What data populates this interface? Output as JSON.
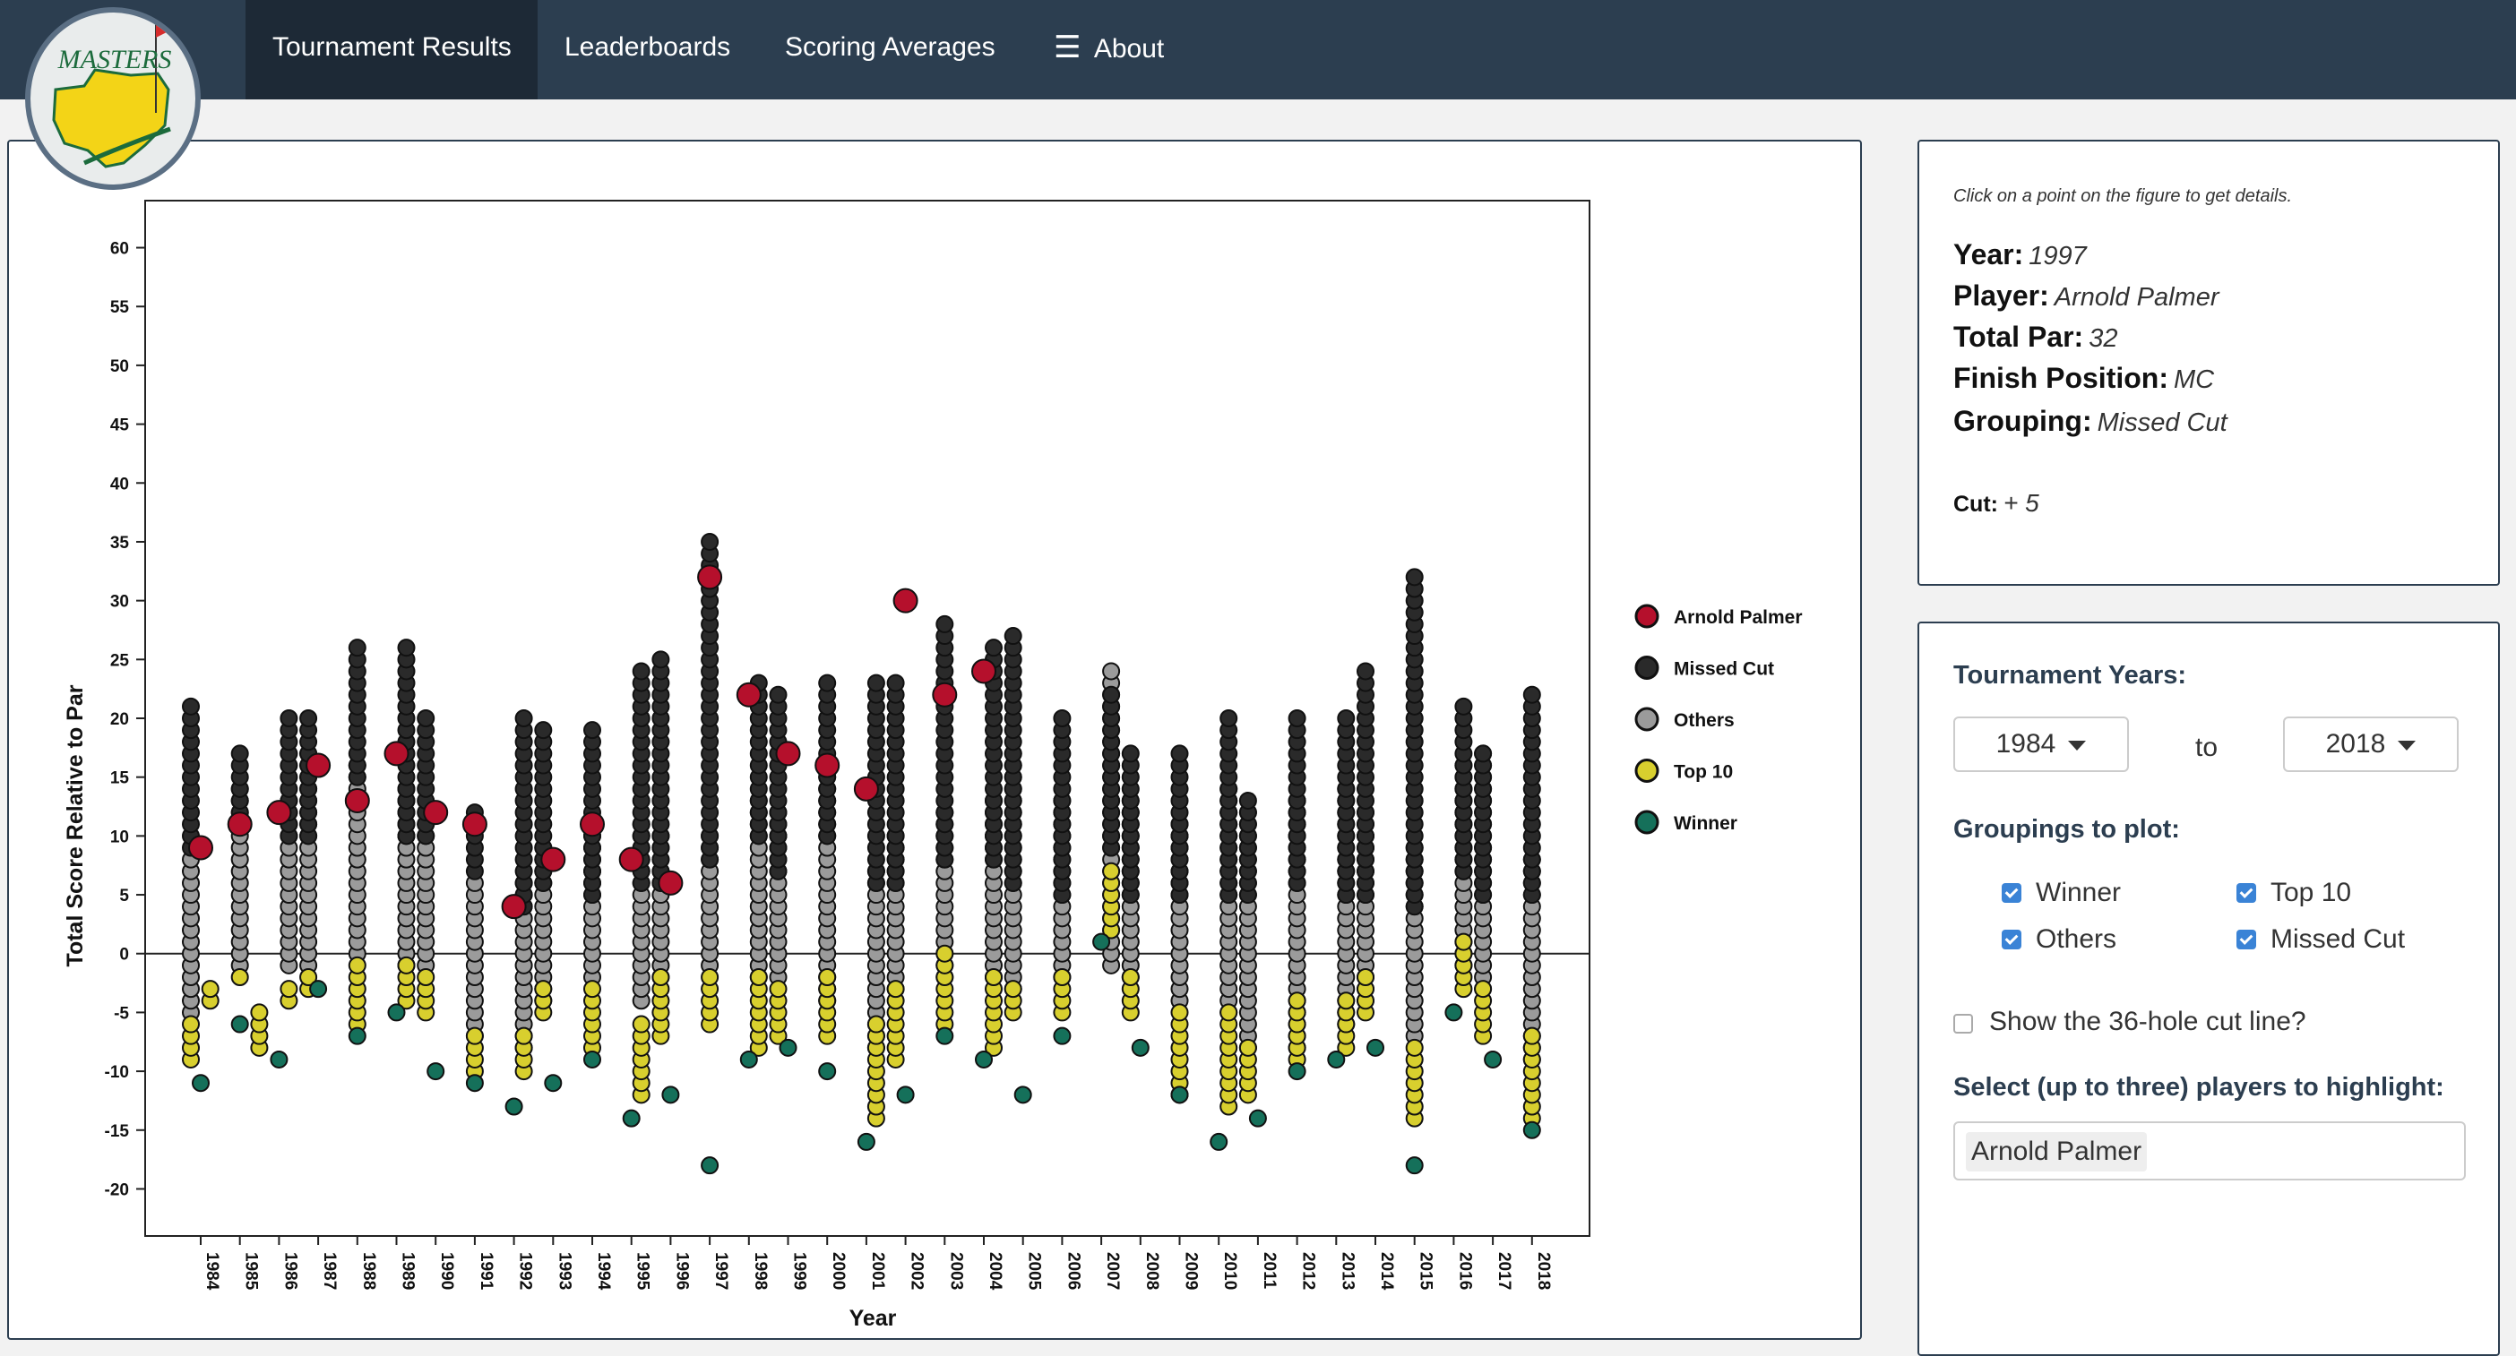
{
  "nav": {
    "items": [
      "Tournament Results",
      "Leaderboards",
      "Scoring Averages",
      "About"
    ],
    "active": "Tournament Results",
    "logo_text": "MASTERS"
  },
  "chart_data": {
    "type": "scatter",
    "xlabel": "Year",
    "ylabel": "Total Score Relative to Par",
    "x_categories": [
      "1984",
      "1985",
      "1986",
      "1987",
      "1988",
      "1989",
      "1990",
      "1991",
      "1992",
      "1993",
      "1994",
      "1995",
      "1996",
      "1997",
      "1998",
      "1999",
      "2000",
      "2001",
      "2002",
      "2003",
      "2004",
      "2005",
      "2006",
      "2007",
      "2008",
      "2009",
      "2010",
      "2011",
      "2012",
      "2013",
      "2014",
      "2015",
      "2016",
      "2017",
      "2018"
    ],
    "yticks": [
      60,
      55,
      50,
      45,
      40,
      35,
      30,
      25,
      20,
      15,
      10,
      5,
      0,
      -5,
      -10,
      -15,
      -20
    ],
    "ylim": [
      -24,
      64
    ],
    "reference_line_y": 0,
    "legend_position": "right",
    "legend": [
      "Arnold Palmer",
      "Missed Cut",
      "Others",
      "Top 10",
      "Winner"
    ],
    "colors": {
      "Arnold Palmer": "#b5102c",
      "Missed Cut": "#2a2a2a",
      "Others": "#9b9b9b",
      "Top 10": "#d8cf2e",
      "Winner": "#15705a"
    },
    "winner": [
      -11,
      -6,
      -9,
      -3,
      -7,
      -5,
      -10,
      -11,
      -13,
      -11,
      -9,
      -14,
      -12,
      -18,
      -9,
      -8,
      -10,
      -16,
      -12,
      -7,
      -9,
      -12,
      -7,
      1,
      -8,
      -12,
      -16,
      -14,
      -10,
      -9,
      -8,
      -18,
      -5,
      -9,
      -15
    ],
    "top10_range": [
      [
        -9,
        -6
      ],
      [
        -4,
        -2
      ],
      [
        -8,
        -3
      ],
      [
        -3,
        -2
      ],
      [
        -6,
        -1
      ],
      [
        -4,
        -1
      ],
      [
        -5,
        -2
      ],
      [
        -10,
        -7
      ],
      [
        -10,
        -7
      ],
      [
        -5,
        -3
      ],
      [
        -8,
        -3
      ],
      [
        -12,
        -6
      ],
      [
        -7,
        -2
      ],
      [
        -6,
        -2
      ],
      [
        -8,
        -2
      ],
      [
        -7,
        -3
      ],
      [
        -7,
        -2
      ],
      [
        -14,
        -6
      ],
      [
        -9,
        -3
      ],
      [
        -6,
        0
      ],
      [
        -8,
        -2
      ],
      [
        -5,
        -3
      ],
      [
        -5,
        -2
      ],
      [
        2,
        7
      ],
      [
        -5,
        -2
      ],
      [
        -12,
        -5
      ],
      [
        -13,
        -5
      ],
      [
        -12,
        -8
      ],
      [
        -9,
        -4
      ],
      [
        -8,
        -4
      ],
      [
        -5,
        -2
      ],
      [
        -14,
        -8
      ],
      [
        -3,
        1
      ],
      [
        -7,
        -3
      ],
      [
        -14,
        -7
      ]
    ],
    "others_range": [
      [
        -5,
        8
      ],
      [
        -1,
        14
      ],
      [
        -1,
        13
      ],
      [
        -1,
        17
      ],
      [
        0,
        16
      ],
      [
        -1,
        14
      ],
      [
        -1,
        11
      ],
      [
        -7,
        6
      ],
      [
        -8,
        6
      ],
      [
        -4,
        9
      ],
      [
        -2,
        10
      ],
      [
        -4,
        11
      ],
      [
        -2,
        10
      ],
      [
        -1,
        10
      ],
      [
        -2,
        13
      ],
      [
        -2,
        12
      ],
      [
        -4,
        15
      ],
      [
        -8,
        7
      ],
      [
        -3,
        10
      ],
      [
        -2,
        12
      ],
      [
        -2,
        13
      ],
      [
        -3,
        17
      ],
      [
        -2,
        13
      ],
      [
        -1,
        24
      ],
      [
        -2,
        13
      ],
      [
        -4,
        11
      ],
      [
        -5,
        14
      ],
      [
        -8,
        12
      ],
      [
        -8,
        13
      ],
      [
        -6,
        14
      ],
      [
        -4,
        12
      ],
      [
        -7,
        9
      ],
      [
        -1,
        16
      ],
      [
        -3,
        17
      ],
      [
        -9,
        8
      ]
    ],
    "missedcut_range": [
      [
        9,
        21
      ],
      [
        11,
        17
      ],
      [
        10,
        20
      ],
      [
        10,
        20
      ],
      [
        15,
        26
      ],
      [
        10,
        26
      ],
      [
        10,
        20
      ],
      [
        7,
        12
      ],
      [
        4,
        20
      ],
      [
        6,
        19
      ],
      [
        5,
        19
      ],
      [
        6,
        24
      ],
      [
        6,
        25
      ],
      [
        8,
        35
      ],
      [
        10,
        23
      ],
      [
        7,
        22
      ],
      [
        10,
        23
      ],
      [
        6,
        23
      ],
      [
        6,
        23
      ],
      [
        8,
        28
      ],
      [
        8,
        26
      ],
      [
        6,
        27
      ],
      [
        5,
        20
      ],
      [
        9,
        22
      ],
      [
        5,
        17
      ],
      [
        5,
        17
      ],
      [
        5,
        20
      ],
      [
        5,
        13
      ],
      [
        6,
        20
      ],
      [
        5,
        20
      ],
      [
        5,
        24
      ],
      [
        4,
        32
      ],
      [
        7,
        21
      ],
      [
        5,
        17
      ],
      [
        5,
        22
      ]
    ],
    "arnold_palmer": [
      [
        1984,
        9
      ],
      [
        1985,
        11
      ],
      [
        1986,
        12
      ],
      [
        1987,
        16
      ],
      [
        1988,
        13
      ],
      [
        1989,
        17
      ],
      [
        1990,
        12
      ],
      [
        1991,
        11
      ],
      [
        1992,
        4
      ],
      [
        1993,
        8
      ],
      [
        1994,
        11
      ],
      [
        1995,
        8
      ],
      [
        1996,
        6
      ],
      [
        1997,
        32
      ],
      [
        1998,
        22
      ],
      [
        1999,
        17
      ],
      [
        2000,
        16
      ],
      [
        2001,
        14
      ],
      [
        2002,
        30
      ],
      [
        2003,
        22
      ],
      [
        2004,
        24
      ]
    ]
  },
  "details": {
    "hint": "Click on a point on the figure to get details.",
    "year_label": "Year:",
    "year_value": "1997",
    "player_label": "Player:",
    "player_value": "Arnold Palmer",
    "totalpar_label": "Total Par:",
    "totalpar_value": "32",
    "finish_label": "Finish Position:",
    "finish_value": "MC",
    "grouping_label": "Grouping:",
    "grouping_value": "Missed Cut",
    "cut_label": "Cut:",
    "cut_value": "+ 5"
  },
  "controls": {
    "years_label": "Tournament Years:",
    "year_from": "1984",
    "to_text": "to",
    "year_to": "2018",
    "groupings_label": "Groupings to plot:",
    "groupings": [
      {
        "label": "Winner",
        "checked": true
      },
      {
        "label": "Top 10",
        "checked": true
      },
      {
        "label": "Others",
        "checked": true
      },
      {
        "label": "Missed Cut",
        "checked": true
      }
    ],
    "cutline_label": "Show the 36-hole cut line?",
    "cutline_checked": false,
    "highlight_label": "Select (up to three) players to highlight:",
    "highlight_players": [
      "Arnold Palmer"
    ]
  }
}
